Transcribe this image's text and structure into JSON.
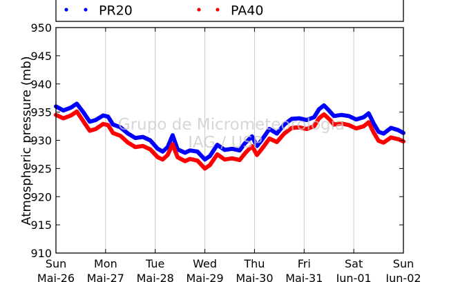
{
  "chart_data": {
    "type": "line",
    "title": "",
    "xlabel": "",
    "ylabel": "Atmospheric pressure (mb)",
    "ylim": [
      910,
      950
    ],
    "yticks": [
      "910",
      "915",
      "920",
      "925",
      "930",
      "935",
      "940",
      "945",
      "950"
    ],
    "xlim": [
      0,
      7
    ],
    "xticks": [
      {
        "day": "Sun",
        "date": "Mai-26"
      },
      {
        "day": "Mon",
        "date": "Mai-27"
      },
      {
        "day": "Tue",
        "date": "Mai-28"
      },
      {
        "day": "Wed",
        "date": "Mai-29"
      },
      {
        "day": "Thu",
        "date": "Mai-30"
      },
      {
        "day": "Fri",
        "date": "Mai-31"
      },
      {
        "day": "Sat",
        "date": "Jun-01"
      },
      {
        "day": "Sun",
        "date": "Jun-02"
      }
    ],
    "grid": "vertical",
    "legend": "top",
    "watermark": [
      "Grupo de Micrometeorologia",
      "IAG / USP"
    ],
    "series": [
      {
        "name": "PR20",
        "color": "#0000ff",
        "x": [
          0.0,
          0.15,
          0.3,
          0.42,
          0.55,
          0.68,
          0.8,
          0.95,
          1.05,
          1.15,
          1.3,
          1.45,
          1.6,
          1.75,
          1.9,
          2.05,
          2.15,
          2.25,
          2.35,
          2.45,
          2.6,
          2.7,
          2.85,
          3.0,
          3.1,
          3.25,
          3.4,
          3.55,
          3.7,
          3.8,
          3.95,
          4.05,
          4.15,
          4.3,
          4.45,
          4.6,
          4.75,
          4.9,
          5.05,
          5.2,
          5.3,
          5.4,
          5.5,
          5.6,
          5.75,
          5.9,
          6.05,
          6.2,
          6.3,
          6.4,
          6.5,
          6.6,
          6.75,
          6.9,
          7.0
        ],
        "y": [
          936.0,
          935.3,
          935.8,
          936.5,
          935.0,
          933.3,
          933.6,
          934.4,
          934.2,
          932.8,
          932.3,
          931.2,
          930.4,
          930.6,
          930.0,
          928.5,
          928.0,
          928.8,
          930.9,
          928.4,
          927.8,
          928.2,
          928.0,
          926.6,
          927.2,
          929.2,
          928.3,
          928.5,
          928.2,
          929.4,
          930.7,
          929.0,
          930.1,
          932.0,
          931.2,
          932.8,
          933.8,
          933.9,
          933.6,
          934.1,
          935.5,
          936.2,
          935.3,
          934.3,
          934.5,
          934.3,
          933.7,
          934.1,
          934.8,
          933.0,
          931.5,
          931.2,
          932.2,
          931.8,
          931.3
        ]
      },
      {
        "name": "PA40",
        "color": "#ff0000",
        "x": [
          0.0,
          0.15,
          0.3,
          0.42,
          0.55,
          0.68,
          0.8,
          0.95,
          1.05,
          1.15,
          1.3,
          1.45,
          1.6,
          1.75,
          1.9,
          2.05,
          2.15,
          2.25,
          2.35,
          2.45,
          2.6,
          2.7,
          2.85,
          3.0,
          3.1,
          3.25,
          3.4,
          3.55,
          3.7,
          3.8,
          3.95,
          4.05,
          4.15,
          4.3,
          4.45,
          4.6,
          4.75,
          4.9,
          5.05,
          5.2,
          5.3,
          5.4,
          5.5,
          5.6,
          5.75,
          5.9,
          6.05,
          6.2,
          6.3,
          6.4,
          6.5,
          6.6,
          6.75,
          6.9,
          7.0
        ],
        "y": [
          934.5,
          933.9,
          934.4,
          935.1,
          933.4,
          931.7,
          932.0,
          932.9,
          932.7,
          931.3,
          930.8,
          929.6,
          928.8,
          929.0,
          928.4,
          927.0,
          926.6,
          927.4,
          929.3,
          927.0,
          926.3,
          926.7,
          926.4,
          925.0,
          925.6,
          927.5,
          926.6,
          926.8,
          926.5,
          927.6,
          929.0,
          927.4,
          928.5,
          930.3,
          929.7,
          931.2,
          932.2,
          932.3,
          932.0,
          932.5,
          933.9,
          934.6,
          933.8,
          932.8,
          933.0,
          932.7,
          932.1,
          932.5,
          933.2,
          931.4,
          929.9,
          929.6,
          930.5,
          930.2,
          929.8
        ]
      }
    ]
  }
}
